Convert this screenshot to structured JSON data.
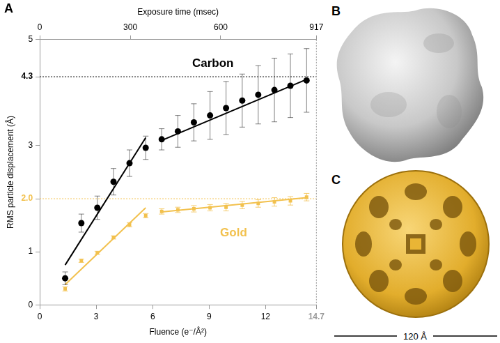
{
  "chart_data": {
    "type": "scatter",
    "panel_label": "A",
    "x_label": "Fluence (e⁻/Å²)",
    "x2_label": "Exposure time (msec)",
    "y_label": "RMS particle displacement (Å)",
    "xlim": [
      0,
      14.7
    ],
    "xticks": [
      0,
      3,
      6,
      9,
      12,
      14.7
    ],
    "x2lim": [
      0,
      917
    ],
    "x2ticks": [
      0,
      300,
      600,
      917
    ],
    "ylim": [
      0,
      5
    ],
    "yticks": [
      0,
      1,
      {
        "value": 2,
        "label": "2.0"
      },
      3,
      4.3,
      5
    ],
    "grid": false,
    "reference_lines": [
      {
        "axis": "y",
        "value": 4.3,
        "color": "#000000"
      },
      {
        "axis": "y",
        "value": 2,
        "color": "#f2c14e"
      },
      {
        "axis": "x",
        "value": 14.7,
        "color": "#999999"
      }
    ],
    "series": [
      {
        "name": "Carbon",
        "color": "#000000",
        "marker": "circle",
        "label_at": [
          9.2,
          4.55
        ],
        "x": [
          1.35,
          2.21,
          3.06,
          3.92,
          4.77,
          5.63,
          6.48,
          7.34,
          8.19,
          9.05,
          9.9,
          10.76,
          11.61,
          12.47,
          13.32,
          14.18
        ],
        "values": [
          0.5,
          1.54,
          1.83,
          2.32,
          2.67,
          2.96,
          3.12,
          3.27,
          3.44,
          3.57,
          3.71,
          3.85,
          3.96,
          4.05,
          4.13,
          4.23
        ],
        "errors": [
          0.12,
          0.17,
          0.22,
          0.25,
          0.25,
          0.22,
          0.2,
          0.3,
          0.35,
          0.45,
          0.5,
          0.5,
          0.55,
          0.6,
          0.6,
          0.6
        ],
        "fits": [
          [
            [
              1.35,
              0.75
            ],
            [
              5.63,
              3.15
            ]
          ],
          [
            [
              6.48,
              3.1
            ],
            [
              14.18,
              4.25
            ]
          ]
        ]
      },
      {
        "name": "Gold",
        "color": "#f2c14e",
        "marker": "square",
        "label_at": [
          10.3,
          1.35
        ],
        "x": [
          1.35,
          2.21,
          3.06,
          3.92,
          4.77,
          5.63,
          6.48,
          7.34,
          8.19,
          9.05,
          9.9,
          10.76,
          11.61,
          12.47,
          13.32,
          14.18
        ],
        "values": [
          0.3,
          0.83,
          0.98,
          1.27,
          1.51,
          1.68,
          1.76,
          1.79,
          1.81,
          1.83,
          1.84,
          1.88,
          1.91,
          1.94,
          1.96,
          2.03
        ],
        "errors": [
          0.04,
          0.03,
          0.03,
          0.03,
          0.04,
          0.04,
          0.05,
          0.05,
          0.06,
          0.06,
          0.07,
          0.07,
          0.07,
          0.08,
          0.08,
          0.07
        ],
        "fits": [
          [
            [
              1.35,
              0.38
            ],
            [
              5.63,
              1.83
            ]
          ],
          [
            [
              6.48,
              1.75
            ],
            [
              14.18,
              2.02
            ]
          ]
        ]
      }
    ]
  },
  "panels": [
    {
      "label": "B"
    },
    {
      "label": "C",
      "scale_bar": "120 Å"
    }
  ]
}
